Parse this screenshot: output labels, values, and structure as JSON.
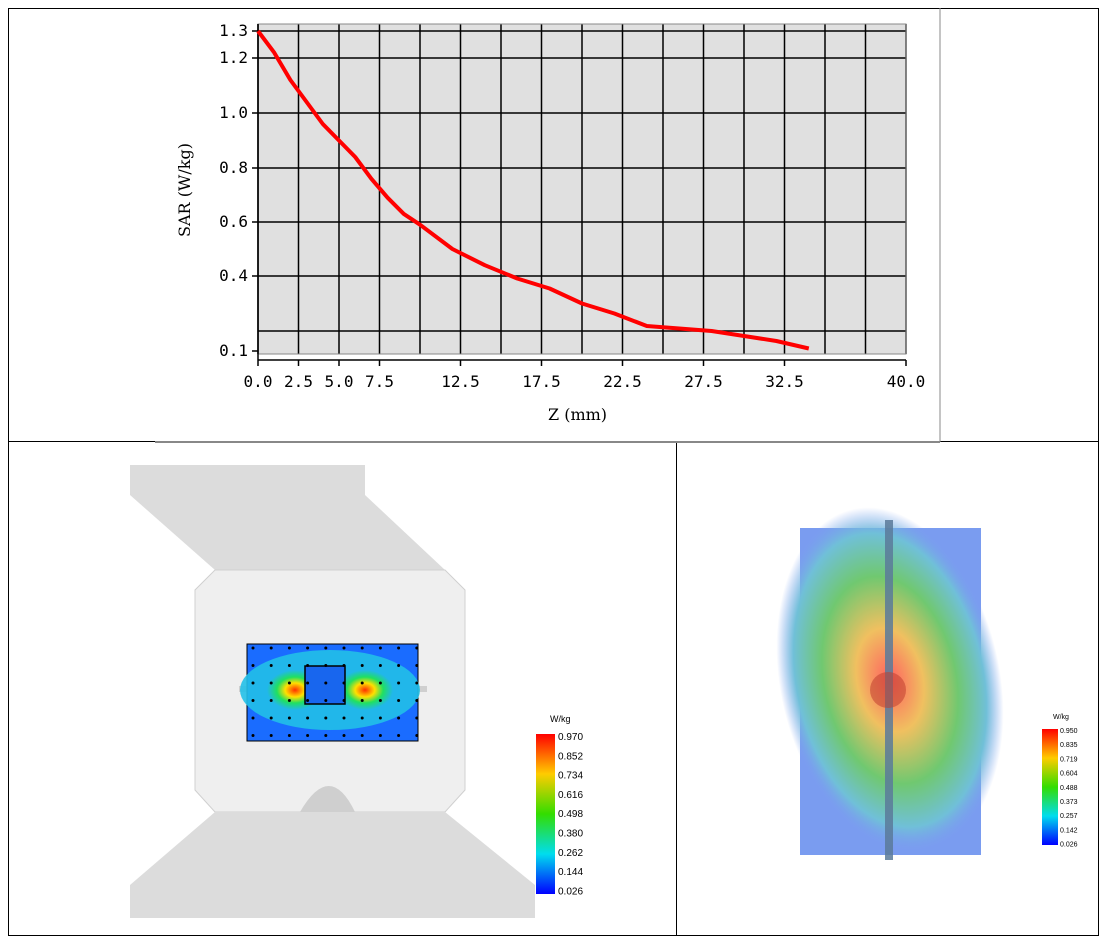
{
  "chart_data": {
    "type": "line",
    "xlabel": "Z (mm)",
    "ylabel": "SAR (W/kg)",
    "xlim": [
      0,
      40
    ],
    "ylim": [
      0.1,
      1.3
    ],
    "x_tick_labels": [
      "0.0",
      "2.5",
      "5.0",
      "7.5",
      "12.5",
      "17.5",
      "22.5",
      "27.5",
      "32.5",
      "40.0"
    ],
    "y_tick_labels": [
      "0.1",
      "0.4",
      "0.6",
      "0.8",
      "1.0",
      "1.2",
      "1.3"
    ],
    "grid": true,
    "series": [
      {
        "color": "#ff0000",
        "x": [
          0,
          1,
          2,
          3,
          4,
          5,
          6,
          7,
          8,
          9,
          10,
          12,
          14,
          16,
          18,
          20,
          22,
          24,
          26,
          28,
          30,
          32,
          34
        ],
        "y": [
          1.3,
          1.22,
          1.12,
          1.04,
          0.96,
          0.9,
          0.84,
          0.76,
          0.69,
          0.63,
          0.59,
          0.5,
          0.44,
          0.39,
          0.35,
          0.29,
          0.25,
          0.2,
          0.19,
          0.18,
          0.16,
          0.14,
          0.11
        ]
      }
    ]
  },
  "map_left": {
    "legend_title": "W/kg",
    "legend_values": [
      "0.970",
      "0.852",
      "0.734",
      "0.616",
      "0.498",
      "0.380",
      "0.262",
      "0.144",
      "0.026"
    ]
  },
  "map_right": {
    "legend_title": "W/kg",
    "legend_values": [
      "0.950",
      "0.835",
      "0.719",
      "0.604",
      "0.488",
      "0.373",
      "0.257",
      "0.142",
      "0.026"
    ]
  }
}
